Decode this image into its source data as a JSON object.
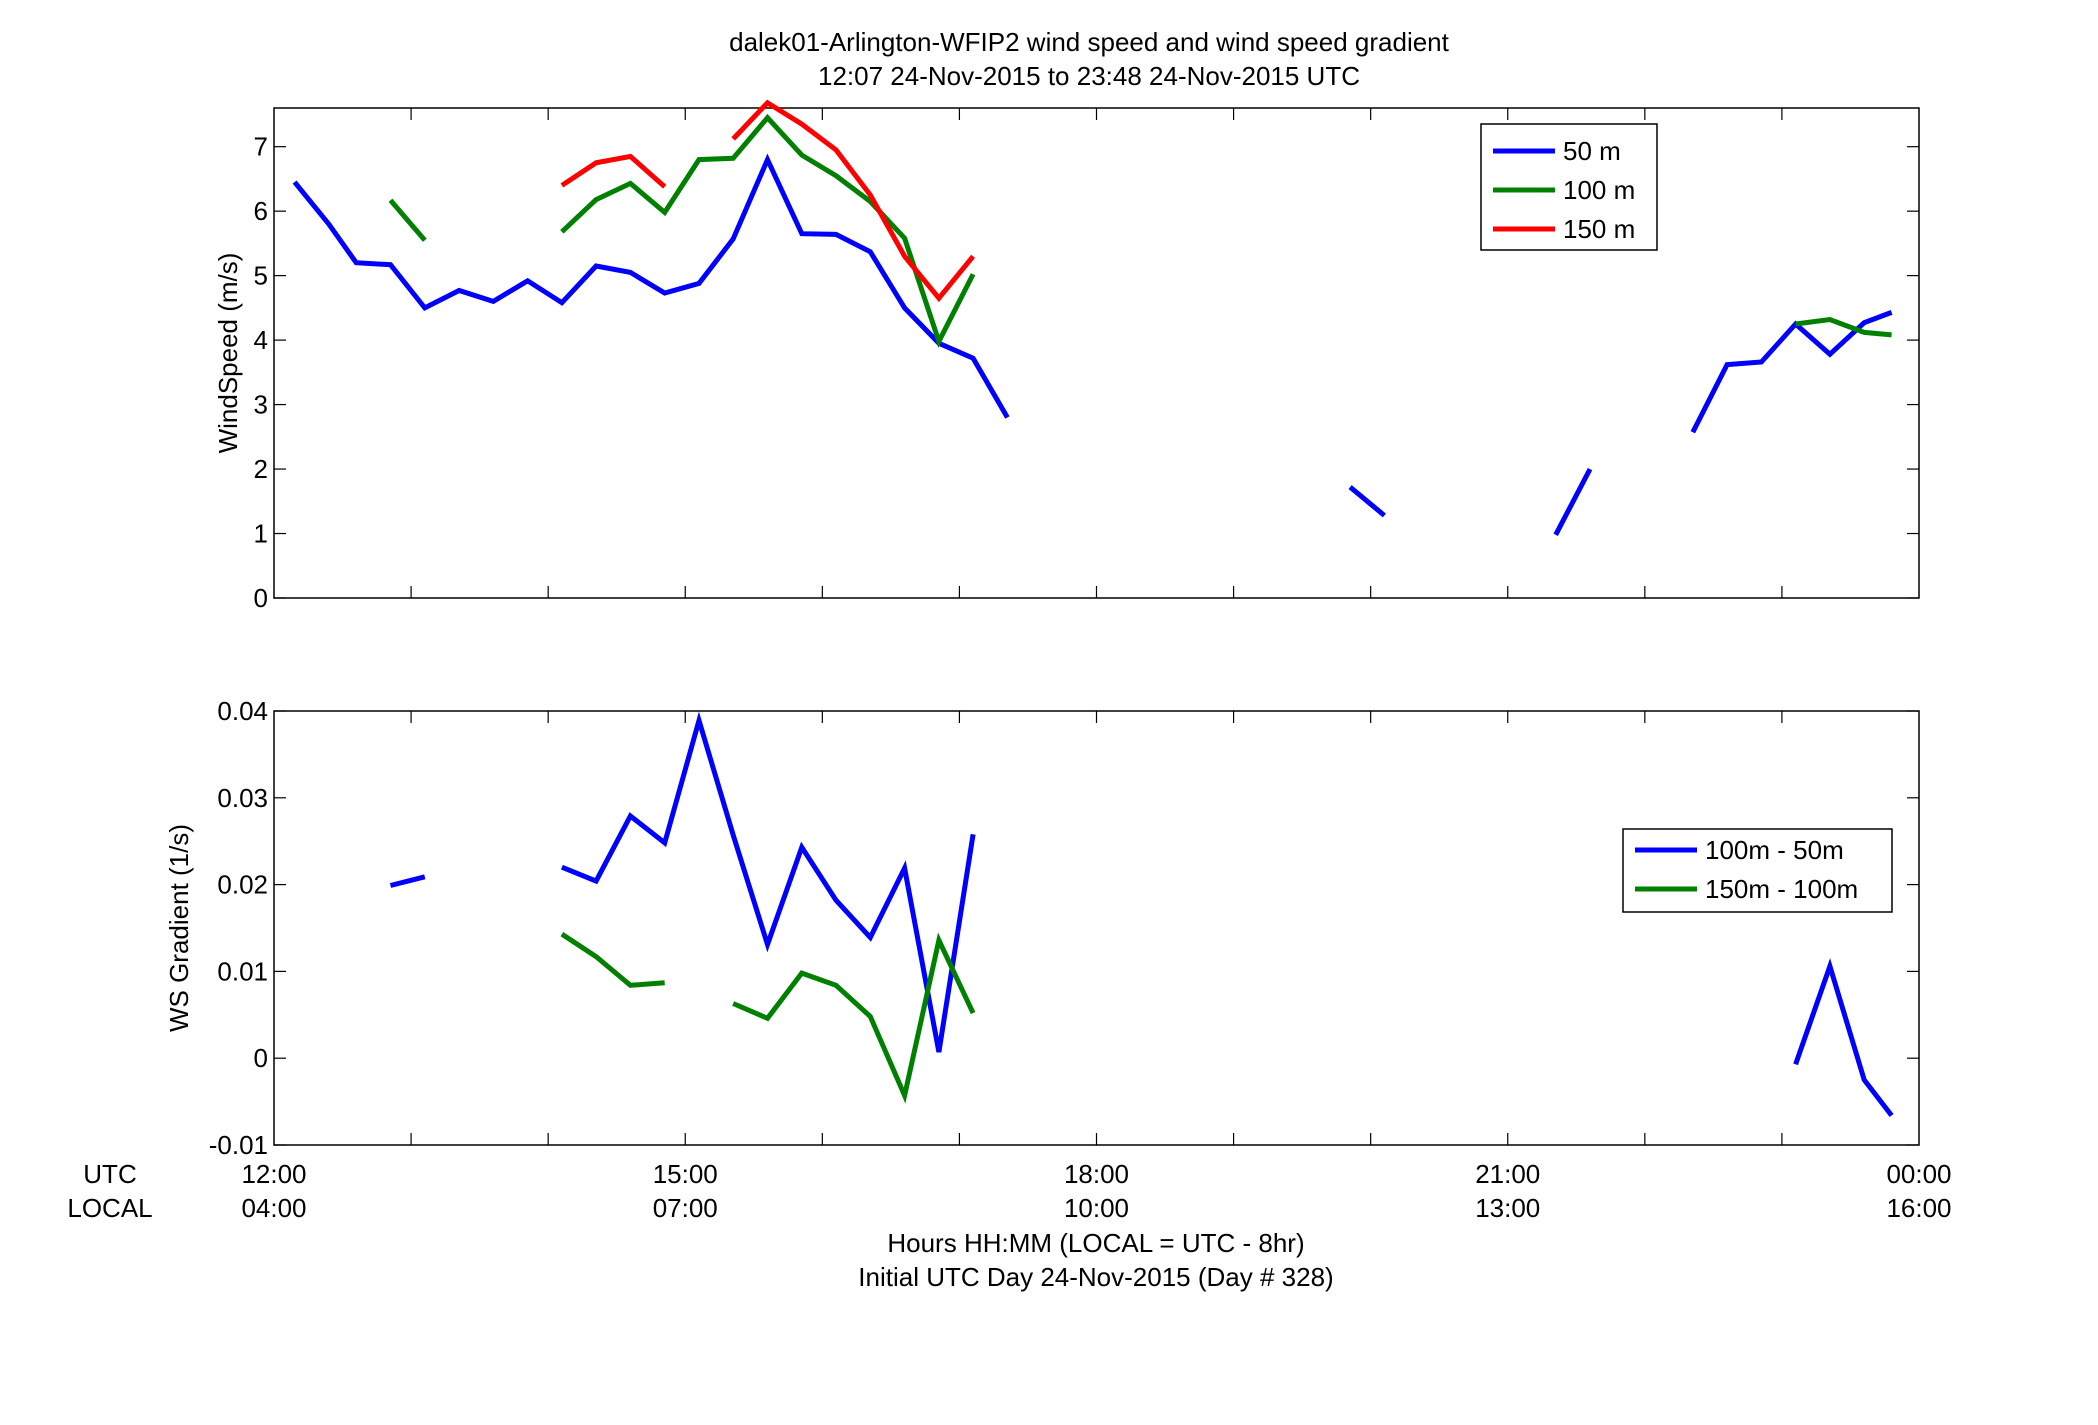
{
  "title_line1": "dalek01-Arlington-WFIP2  wind speed and wind speed gradient",
  "title_line2": "12:07 24-Nov-2015 to 23:48 24-Nov-2015  UTC",
  "xlabel_line1": "Hours HH:MM  (LOCAL = UTC - 8hr)",
  "xlabel_line2": "Initial UTC Day 24-Nov-2015 (Day # 328)",
  "row_label_utc": "UTC",
  "row_label_local": "LOCAL",
  "x_ticks": [
    {
      "hour": 12,
      "utc": "12:00",
      "local": "04:00"
    },
    {
      "hour": 15,
      "utc": "15:00",
      "local": "07:00"
    },
    {
      "hour": 18,
      "utc": "18:00",
      "local": "10:00"
    },
    {
      "hour": 21,
      "utc": "21:00",
      "local": "13:00"
    },
    {
      "hour": 24,
      "utc": "00:00",
      "local": "16:00"
    }
  ],
  "colors": {
    "blue": "#0000ff",
    "green": "#008000",
    "red": "#ff0000"
  },
  "chart_data": [
    {
      "type": "line",
      "ylabel": "WindSpeed (m/s)",
      "xlim": [
        12,
        24
      ],
      "ylim": [
        0,
        7.6
      ],
      "yticks": [
        "0",
        "1",
        "2",
        "3",
        "4",
        "5",
        "6",
        "7"
      ],
      "grid": false,
      "legend_position": "top-right",
      "series": [
        {
          "name": "50 m",
          "color": "#0000ff",
          "segments": [
            [
              [
                12.15,
                6.45
              ],
              [
                12.4,
                5.8
              ],
              [
                12.6,
                5.2
              ],
              [
                12.85,
                5.17
              ],
              [
                13.1,
                4.5
              ],
              [
                13.35,
                4.77
              ],
              [
                13.6,
                4.6
              ],
              [
                13.85,
                4.92
              ],
              [
                14.1,
                4.58
              ],
              [
                14.35,
                5.15
              ],
              [
                14.6,
                5.05
              ],
              [
                14.85,
                4.73
              ],
              [
                15.1,
                4.88
              ],
              [
                15.35,
                5.57
              ],
              [
                15.6,
                6.8
              ],
              [
                15.85,
                5.65
              ],
              [
                16.1,
                5.64
              ],
              [
                16.35,
                5.37
              ],
              [
                16.6,
                4.5
              ],
              [
                16.85,
                3.95
              ],
              [
                17.1,
                3.72
              ],
              [
                17.35,
                2.8
              ]
            ],
            [
              [
                19.85,
                1.72
              ],
              [
                20.1,
                1.28
              ]
            ],
            [
              [
                21.35,
                0.98
              ],
              [
                21.6,
                2.0
              ]
            ],
            [
              [
                22.35,
                2.57
              ],
              [
                22.6,
                3.62
              ],
              [
                22.85,
                3.66
              ],
              [
                23.1,
                4.25
              ],
              [
                23.35,
                3.78
              ],
              [
                23.6,
                4.27
              ],
              [
                23.8,
                4.43
              ]
            ]
          ]
        },
        {
          "name": "100 m",
          "color": "#008000",
          "segments": [
            [
              [
                12.85,
                6.17
              ],
              [
                13.1,
                5.55
              ]
            ],
            [
              [
                14.1,
                5.68
              ],
              [
                14.35,
                6.18
              ],
              [
                14.6,
                6.43
              ],
              [
                14.85,
                5.98
              ],
              [
                15.1,
                6.8
              ],
              [
                15.35,
                6.82
              ],
              [
                15.6,
                7.45
              ],
              [
                15.85,
                6.87
              ],
              [
                16.1,
                6.55
              ],
              [
                16.35,
                6.15
              ],
              [
                16.6,
                5.58
              ],
              [
                16.85,
                3.98
              ],
              [
                17.1,
                5.02
              ]
            ],
            [
              [
                23.1,
                4.25
              ],
              [
                23.35,
                4.32
              ],
              [
                23.6,
                4.12
              ],
              [
                23.8,
                4.08
              ]
            ]
          ]
        },
        {
          "name": "150 m",
          "color": "#ff0000",
          "segments": [
            [
              [
                14.1,
                6.4
              ],
              [
                14.35,
                6.75
              ],
              [
                14.6,
                6.85
              ],
              [
                14.85,
                6.38
              ]
            ],
            [
              [
                15.35,
                7.12
              ],
              [
                15.6,
                7.68
              ],
              [
                15.85,
                7.35
              ],
              [
                16.1,
                6.95
              ],
              [
                16.35,
                6.25
              ],
              [
                16.6,
                5.3
              ],
              [
                16.85,
                4.65
              ],
              [
                17.1,
                5.3
              ]
            ]
          ]
        }
      ]
    },
    {
      "type": "line",
      "ylabel": "WS Gradient (1/s)",
      "xlim": [
        12,
        24
      ],
      "ylim": [
        -0.01,
        0.04
      ],
      "yticks": [
        "-0.01",
        "0",
        "0.01",
        "0.02",
        "0.03",
        "0.04"
      ],
      "grid": false,
      "legend_position": "right",
      "series": [
        {
          "name": "100m - 50m",
          "color": "#0000ff",
          "segments": [
            [
              [
                12.85,
                0.0199
              ],
              [
                13.1,
                0.0209
              ]
            ],
            [
              [
                14.1,
                0.022
              ],
              [
                14.35,
                0.0204
              ],
              [
                14.6,
                0.0279
              ],
              [
                14.85,
                0.0248
              ],
              [
                15.1,
                0.0389
              ],
              [
                15.35,
                0.0257
              ],
              [
                15.6,
                0.0131
              ],
              [
                15.85,
                0.0243
              ],
              [
                16.1,
                0.0182
              ],
              [
                16.35,
                0.0139
              ],
              [
                16.6,
                0.0219
              ],
              [
                16.85,
                0.0007
              ],
              [
                17.1,
                0.0258
              ]
            ],
            [
              [
                23.1,
                -0.0007
              ],
              [
                23.35,
                0.0106
              ],
              [
                23.6,
                -0.0025
              ],
              [
                23.8,
                -0.0066
              ]
            ]
          ]
        },
        {
          "name": "150m - 100m",
          "color": "#008000",
          "segments": [
            [
              [
                14.1,
                0.0143
              ],
              [
                14.35,
                0.0117
              ],
              [
                14.6,
                0.0084
              ],
              [
                14.85,
                0.0087
              ]
            ],
            [
              [
                15.35,
                0.0063
              ],
              [
                15.6,
                0.0046
              ],
              [
                15.85,
                0.0098
              ],
              [
                16.1,
                0.0084
              ],
              [
                16.35,
                0.0048
              ],
              [
                16.6,
                -0.0043
              ],
              [
                16.85,
                0.0136
              ],
              [
                17.1,
                0.0052
              ]
            ]
          ]
        }
      ]
    }
  ]
}
